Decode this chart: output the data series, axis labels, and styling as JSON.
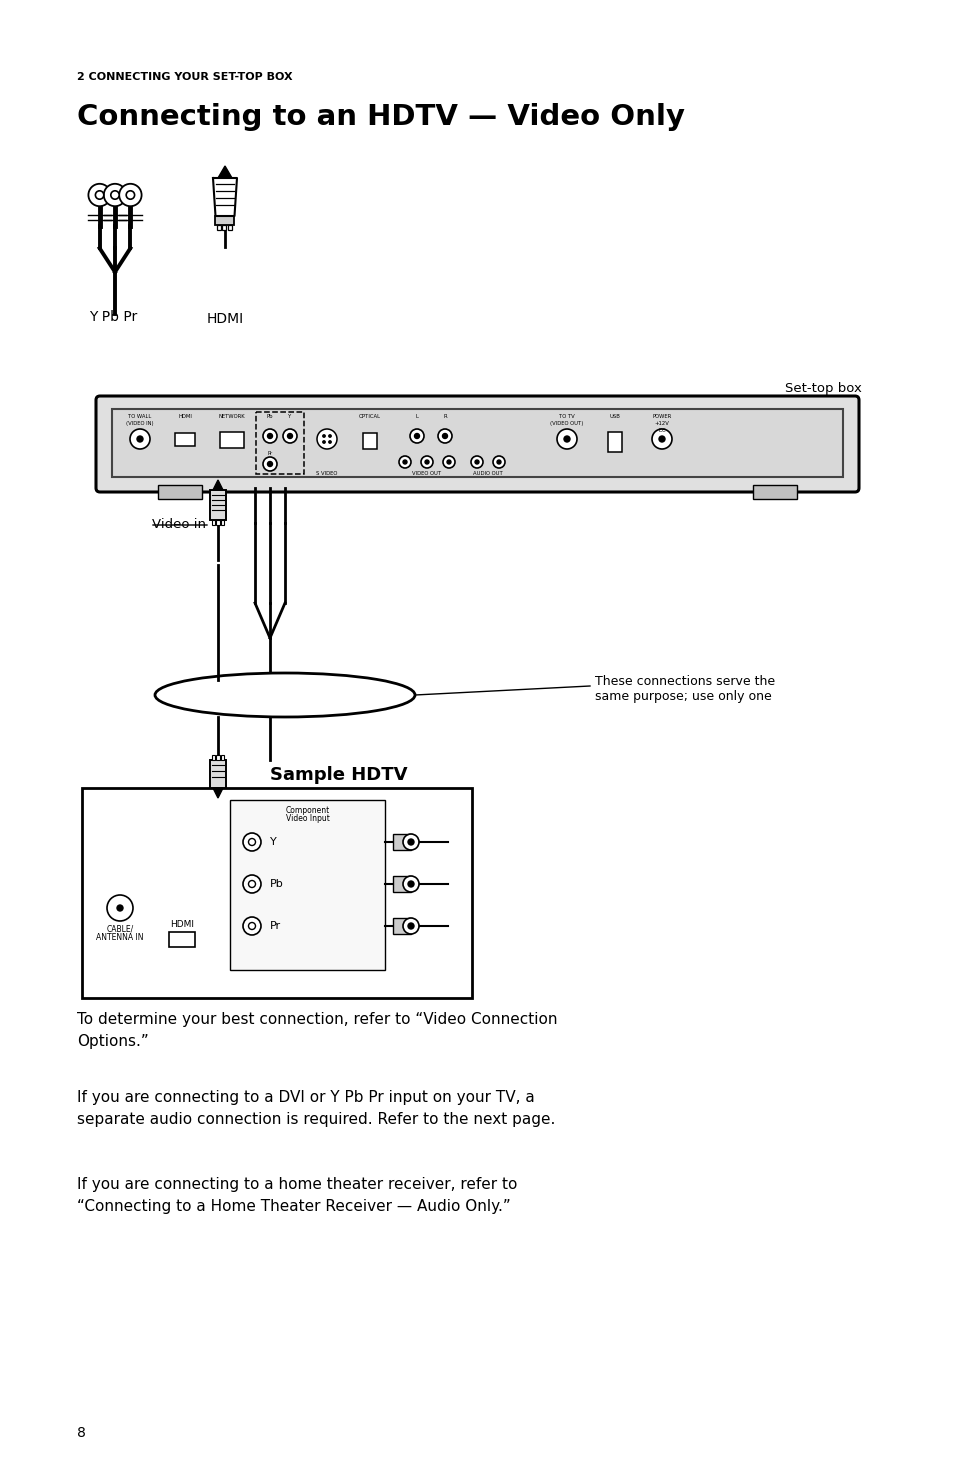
{
  "bg_color": "#ffffff",
  "section_label": "2 CONNECTING YOUR SET-TOP BOX",
  "title": "Connecting to an HDTV — Video Only",
  "label_ypbpr": "Y Pb Pr",
  "label_hdmi": "HDMI",
  "label_settopbox": "Set-top box",
  "label_videoin": "Video in",
  "label_samplehdtv": "Sample HDTV",
  "label_connections": "These connections serve the\nsame purpose; use only one",
  "para1": "To determine your best connection, refer to “Video Connection\nOptions.”",
  "para2": "If you are connecting to a DVI or Y Pb Pr input on your TV, a\nseparate audio connection is required. Refer to the next page.",
  "para3": "If you are connecting to a home theater receiver, refer to\n“Connecting to a Home Theater Receiver — Audio Only.”",
  "page_number": "8",
  "text_color": "#000000"
}
